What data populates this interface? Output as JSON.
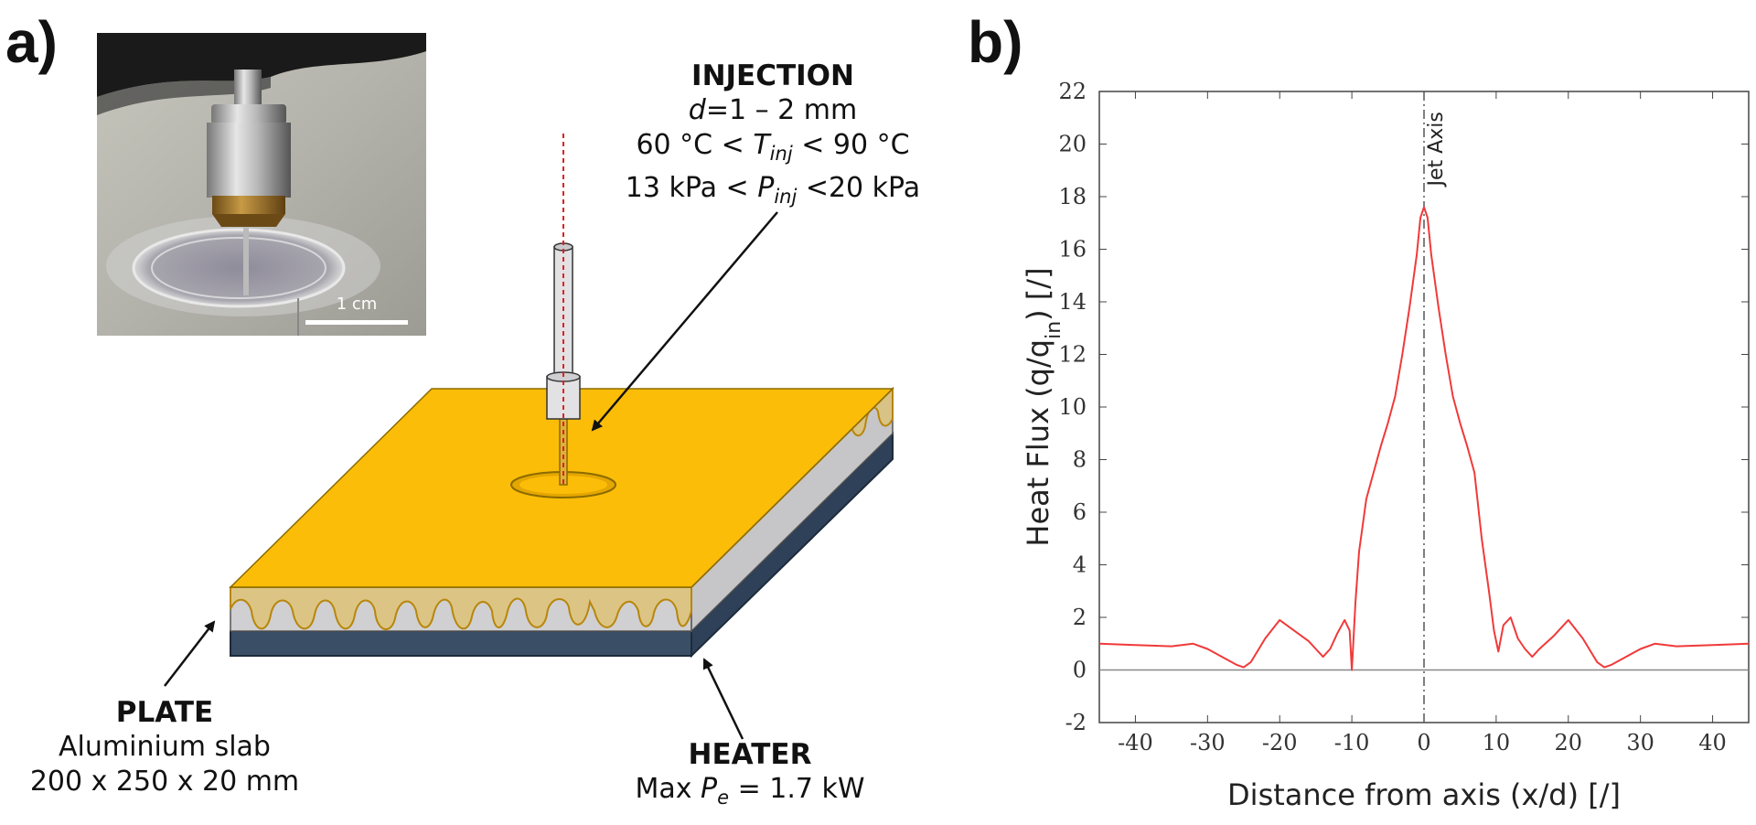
{
  "panel_a": {
    "label": "a)",
    "photo": {
      "scale_bar": "1 cm"
    },
    "injection": {
      "title": "INJECTION",
      "d_var": "d",
      "d_rest": "=1 – 2 mm",
      "temp_left": "60 °C < ",
      "temp_var": "T",
      "temp_sub": "inj",
      "temp_right": " < 90 °C",
      "press_left": "13 kPa < ",
      "press_var": "P",
      "press_sub": "inj",
      "press_right": " <20 kPa"
    },
    "plate": {
      "title": "PLATE",
      "material": "Aluminium slab",
      "dims": "200 x 250 x 20 mm"
    },
    "heater": {
      "title": "HEATER",
      "power_left": "Max ",
      "power_var": "P",
      "power_sub": "e",
      "power_right": " = 1.7 kW"
    }
  },
  "panel_b": {
    "label": "b)"
  },
  "colors": {
    "plate_top": "#fbbd08",
    "slab": "#d0d0d2",
    "heater": "#3a4e66",
    "curve": "#f03a3a"
  },
  "chart_data": {
    "type": "line",
    "title": "",
    "xlabel": "Distance from axis (x/d) [/]",
    "ylabel_main": "Heat Flux (q/q",
    "ylabel_sub": "in",
    "ylabel_end": ") [/]",
    "xlim": [
      -45,
      45
    ],
    "ylim": [
      -2,
      22
    ],
    "xticks": [
      -40,
      -30,
      -20,
      -10,
      0,
      10,
      20,
      30,
      40
    ],
    "yticks": [
      -2,
      0,
      2,
      4,
      6,
      8,
      10,
      12,
      14,
      16,
      18,
      20,
      22
    ],
    "annotation": "Jet Axis",
    "series": [
      {
        "name": "Heat flux",
        "x": [
          -45,
          -40,
          -35,
          -32,
          -30,
          -28,
          -26,
          -25,
          -24,
          -22,
          -20,
          -18,
          -16,
          -15,
          -14,
          -13,
          -12,
          -11,
          -10.3,
          -10,
          -9.5,
          -9,
          -8,
          -7,
          -6,
          -5,
          -4,
          -3,
          -2,
          -1,
          -0.5,
          0,
          0.5,
          1,
          2,
          3,
          4,
          5,
          6,
          7,
          8,
          9,
          9.7,
          10.3,
          11,
          12,
          13,
          14,
          15,
          16,
          18,
          20,
          22,
          24,
          25,
          26,
          28,
          30,
          32,
          35,
          40,
          45
        ],
        "y": [
          1.0,
          0.95,
          0.9,
          1.0,
          0.8,
          0.5,
          0.2,
          0.1,
          0.3,
          1.2,
          1.9,
          1.5,
          1.1,
          0.8,
          0.5,
          0.8,
          1.4,
          1.9,
          1.5,
          0.0,
          2.6,
          4.5,
          6.5,
          7.5,
          8.5,
          9.4,
          10.4,
          12.0,
          13.8,
          15.8,
          17.2,
          17.6,
          17.2,
          15.8,
          13.8,
          12.0,
          10.4,
          9.4,
          8.5,
          7.5,
          5.0,
          3.0,
          1.5,
          0.7,
          1.7,
          2.0,
          1.2,
          0.8,
          0.5,
          0.8,
          1.3,
          1.9,
          1.2,
          0.3,
          0.1,
          0.2,
          0.5,
          0.8,
          1.0,
          0.9,
          0.95,
          1.0
        ]
      }
    ]
  }
}
